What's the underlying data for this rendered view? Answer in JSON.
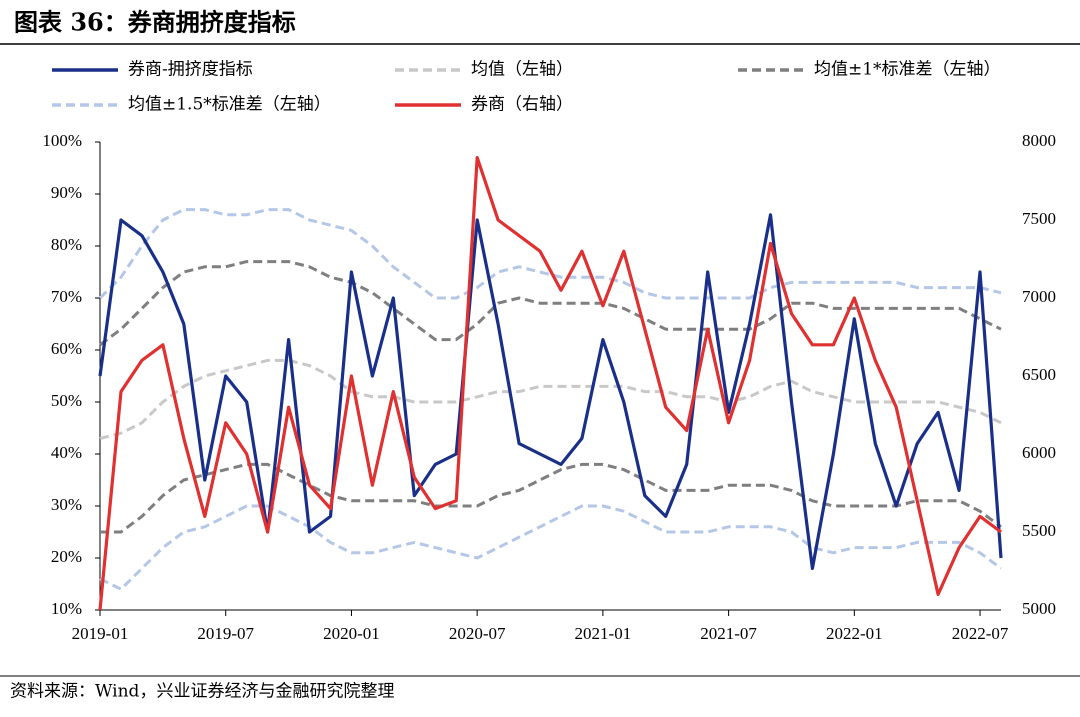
{
  "chart_data": {
    "type": "line",
    "title": "图表 36：券商拥挤度指标",
    "source": "资料来源：Wind，兴业证券经济与金融研究院整理",
    "x": [
      "2019-01",
      "2019-02",
      "2019-03",
      "2019-04",
      "2019-05",
      "2019-06",
      "2019-07",
      "2019-08",
      "2019-09",
      "2019-10",
      "2019-11",
      "2019-12",
      "2020-01",
      "2020-02",
      "2020-03",
      "2020-04",
      "2020-05",
      "2020-06",
      "2020-07",
      "2020-08",
      "2020-09",
      "2020-10",
      "2020-11",
      "2020-12",
      "2021-01",
      "2021-02",
      "2021-03",
      "2021-04",
      "2021-05",
      "2021-06",
      "2021-07",
      "2021-08",
      "2021-09",
      "2021-10",
      "2021-11",
      "2021-12",
      "2022-01",
      "2022-02",
      "2022-03",
      "2022-04",
      "2022-05",
      "2022-06",
      "2022-07",
      "2022-08"
    ],
    "xlim": [
      "2019-01",
      "2022-08"
    ],
    "xticks": [
      "2019-01",
      "2019-07",
      "2020-01",
      "2020-07",
      "2021-01",
      "2021-07",
      "2022-01",
      "2022-07"
    ],
    "ylim": [
      10,
      100
    ],
    "yticks": [
      {
        "value": 10,
        "label": "10%"
      },
      {
        "value": 20,
        "label": "20%"
      },
      {
        "value": 30,
        "label": "30%"
      },
      {
        "value": 40,
        "label": "40%"
      },
      {
        "value": 50,
        "label": "50%"
      },
      {
        "value": 60,
        "label": "60%"
      },
      {
        "value": 70,
        "label": "70%"
      },
      {
        "value": 80,
        "label": "80%"
      },
      {
        "value": 90,
        "label": "90%"
      },
      {
        "value": 100,
        "label": "100%"
      }
    ],
    "y2lim": [
      5000,
      8000
    ],
    "y2ticks": [
      5000,
      5500,
      6000,
      6500,
      7000,
      7500,
      8000
    ],
    "series": [
      {
        "name": "券商-拥挤度指标",
        "color": "#1a2f8a",
        "dash": false,
        "values": [
          55,
          85,
          82,
          75,
          65,
          35,
          55,
          50,
          25,
          62,
          25,
          28,
          75,
          55,
          70,
          32,
          38,
          40,
          85,
          65,
          42,
          40,
          38,
          43,
          62,
          50,
          32,
          28,
          38,
          75,
          48,
          65,
          86,
          50,
          18,
          40,
          66,
          42,
          30,
          42,
          48,
          33,
          75,
          20
        ]
      },
      {
        "name": "均值（左轴）",
        "color": "#c8c8c8",
        "dash": true,
        "values": [
          43,
          44,
          46,
          50,
          53,
          55,
          56,
          57,
          58,
          58,
          57,
          55,
          52,
          51,
          51,
          50,
          50,
          50,
          51,
          52,
          52,
          53,
          53,
          53,
          53,
          53,
          52,
          52,
          51,
          51,
          50,
          51,
          53,
          54,
          52,
          51,
          50,
          50,
          50,
          50,
          50,
          49,
          48,
          46
        ]
      },
      {
        "name": "均值±1*标准差（左轴）",
        "color": "#7f7f7f",
        "dash": true,
        "values": [
          61,
          64,
          68,
          72,
          75,
          76,
          76,
          77,
          77,
          77,
          76,
          74,
          73,
          71,
          68,
          65,
          62,
          62,
          65,
          69,
          70,
          69,
          69,
          69,
          69,
          68,
          66,
          64,
          64,
          64,
          64,
          64,
          66,
          69,
          69,
          68,
          68,
          68,
          68,
          68,
          68,
          68,
          66,
          64
        ],
        "lower_values": [
          25,
          25,
          28,
          32,
          35,
          36,
          37,
          38,
          38,
          36,
          34,
          32,
          31,
          31,
          31,
          31,
          30,
          30,
          30,
          32,
          33,
          35,
          37,
          38,
          38,
          37,
          35,
          33,
          33,
          33,
          34,
          34,
          34,
          33,
          31,
          30,
          30,
          30,
          30,
          31,
          31,
          31,
          29,
          26
        ]
      },
      {
        "name": "均值±1.5*标准差（左轴）",
        "color": "#b4c7e7",
        "dash": true,
        "values": [
          70,
          74,
          80,
          85,
          87,
          87,
          86,
          86,
          87,
          87,
          85,
          84,
          83,
          80,
          76,
          73,
          70,
          70,
          72,
          75,
          76,
          75,
          74,
          74,
          74,
          73,
          71,
          70,
          70,
          70,
          70,
          70,
          72,
          73,
          73,
          73,
          73,
          73,
          73,
          72,
          72,
          72,
          72,
          71
        ],
        "lower_values": [
          16,
          14,
          18,
          22,
          25,
          26,
          28,
          30,
          30,
          28,
          26,
          23,
          21,
          21,
          22,
          23,
          22,
          21,
          20,
          22,
          24,
          26,
          28,
          30,
          30,
          29,
          27,
          25,
          25,
          25,
          26,
          26,
          26,
          25,
          22,
          21,
          22,
          22,
          22,
          23,
          23,
          23,
          21,
          18
        ]
      },
      {
        "name": "券商（右轴）",
        "color": "#e03030",
        "dash": false,
        "axis": "y2",
        "values": [
          5000,
          6400,
          6600,
          6700,
          6100,
          5600,
          6200,
          6000,
          5500,
          6300,
          5800,
          5650,
          6500,
          5800,
          6400,
          5850,
          5650,
          5700,
          7900,
          7500,
          7400,
          7300,
          7050,
          7300,
          6950,
          7300,
          6800,
          6300,
          6150,
          6800,
          6200,
          6600,
          7350,
          6900,
          6700,
          6700,
          7000,
          6600,
          6300,
          5700,
          5100,
          5400,
          5600,
          5500
        ]
      }
    ]
  }
}
